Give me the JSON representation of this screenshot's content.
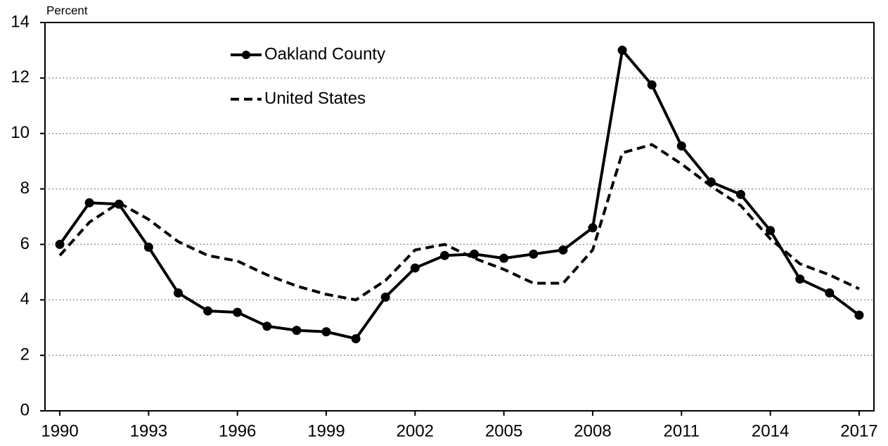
{
  "chart_data": {
    "type": "line",
    "y_label": "Percent",
    "x": [
      1990,
      1991,
      1992,
      1993,
      1994,
      1995,
      1996,
      1997,
      1998,
      1999,
      2000,
      2001,
      2002,
      2003,
      2004,
      2005,
      2006,
      2007,
      2008,
      2009,
      2010,
      2011,
      2012,
      2013,
      2014,
      2015,
      2016,
      2017
    ],
    "series": [
      {
        "name": "Oakland County",
        "color": "#000000",
        "dash": false,
        "markers": true,
        "values": [
          6.0,
          7.5,
          7.45,
          5.9,
          4.25,
          3.6,
          3.55,
          3.05,
          2.9,
          2.85,
          2.6,
          4.1,
          5.15,
          5.6,
          5.65,
          5.5,
          5.65,
          5.8,
          6.6,
          13.0,
          11.75,
          9.55,
          8.25,
          7.8,
          6.5,
          4.75,
          4.25,
          3.45
        ]
      },
      {
        "name": "United States",
        "color": "#000000",
        "dash": true,
        "markers": false,
        "values": [
          5.6,
          6.8,
          7.5,
          6.9,
          6.1,
          5.6,
          5.4,
          4.9,
          4.5,
          4.2,
          4.0,
          4.7,
          5.8,
          6.0,
          5.5,
          5.1,
          4.6,
          4.6,
          5.8,
          9.3,
          9.6,
          8.9,
          8.1,
          7.4,
          6.2,
          5.3,
          4.9,
          4.4
        ]
      }
    ],
    "xlim": [
      1989.5,
      2017.5
    ],
    "xticks": [
      1990,
      1993,
      1996,
      1999,
      2002,
      2005,
      2008,
      2011,
      2014,
      2017
    ],
    "ylim": [
      0,
      14
    ],
    "yticks": [
      0,
      2,
      4,
      6,
      8,
      10,
      12,
      14
    ],
    "grid": true
  }
}
